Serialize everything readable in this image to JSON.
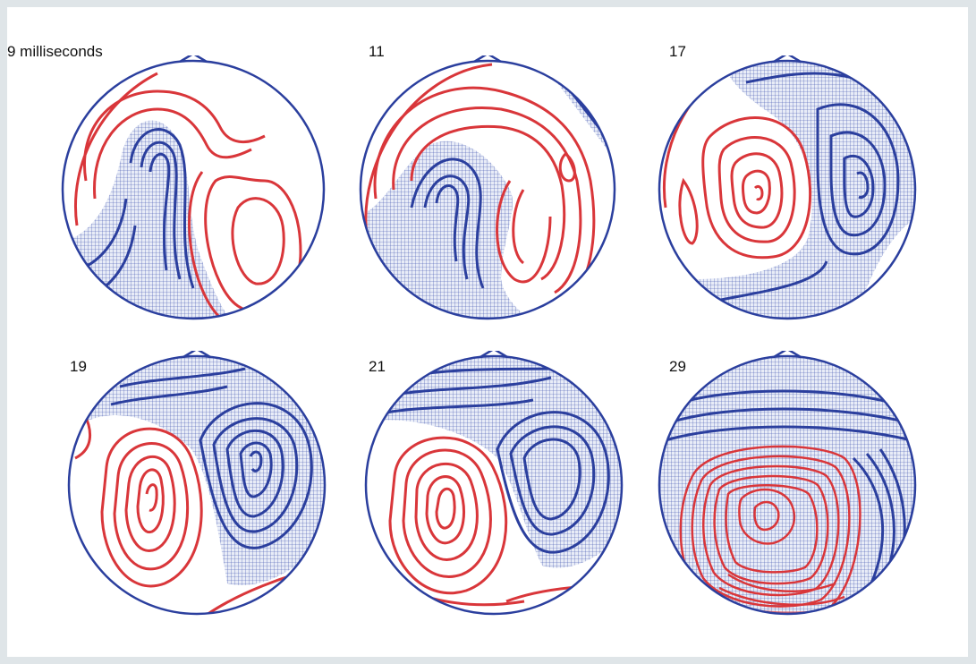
{
  "colors": {
    "background": "#dfe5e8",
    "panel": "#ffffff",
    "negative": "#2b3f9e",
    "positive": "#d9363a",
    "hatch": "#c8d0ea"
  },
  "maps": [
    {
      "label": "9 milliseconds"
    },
    {
      "label": "11"
    },
    {
      "label": "17"
    },
    {
      "label": "19"
    },
    {
      "label": "21"
    },
    {
      "label": "29"
    }
  ]
}
